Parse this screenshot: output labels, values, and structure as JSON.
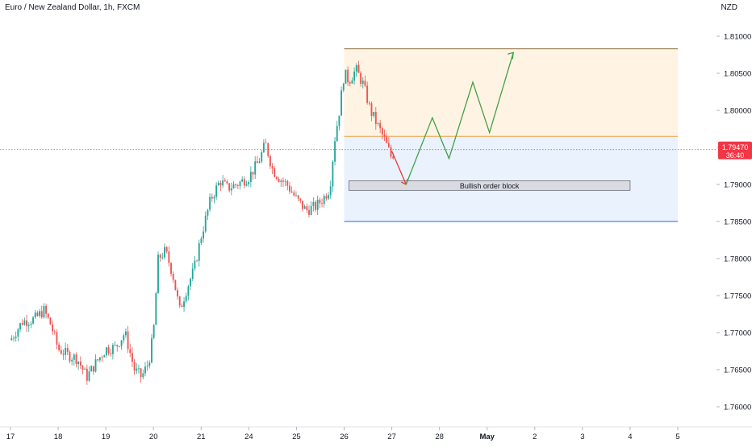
{
  "header": {
    "title": "Euro / New Zealand Dollar, 1h, FXCM",
    "currency": "NZD"
  },
  "price_label": {
    "price": "1.79470",
    "countdown": "36:40"
  },
  "chart_data": {
    "type": "candlestick",
    "ylim": [
      1.7575,
      1.8125
    ],
    "y_ticks": [
      1.76,
      1.765,
      1.77,
      1.775,
      1.78,
      1.785,
      1.79,
      1.795,
      1.8,
      1.805,
      1.81
    ],
    "y_tick_labels": [
      "1.76000",
      "1.76500",
      "1.77000",
      "1.77500",
      "1.78000",
      "1.78500",
      "1.79000",
      "1.79500",
      "1.80000",
      "1.80500",
      "1.81000"
    ],
    "x_ticks": [
      0,
      1,
      2,
      3,
      4,
      5,
      6,
      7,
      8,
      9,
      10,
      11,
      12,
      13,
      14
    ],
    "x_tick_labels": [
      "17",
      "18",
      "19",
      "20",
      "21",
      "24",
      "25",
      "26",
      "27",
      "28",
      "May",
      "2",
      "3",
      "4",
      "5"
    ],
    "current_price": 1.7947,
    "candle_path": [
      [
        0.0,
        1.769
      ],
      [
        0.25,
        1.7715
      ],
      [
        0.5,
        1.7718
      ],
      [
        0.7,
        1.773
      ],
      [
        0.85,
        1.771
      ],
      [
        1.0,
        1.7678
      ],
      [
        1.2,
        1.767
      ],
      [
        1.4,
        1.7665
      ],
      [
        1.6,
        1.764
      ],
      [
        1.8,
        1.766
      ],
      [
        2.0,
        1.7678
      ],
      [
        2.2,
        1.768
      ],
      [
        2.4,
        1.77
      ],
      [
        2.6,
        1.765
      ],
      [
        2.75,
        1.764
      ],
      [
        2.9,
        1.766
      ],
      [
        3.0,
        1.77
      ],
      [
        3.1,
        1.78
      ],
      [
        3.25,
        1.781
      ],
      [
        3.4,
        1.778
      ],
      [
        3.55,
        1.773
      ],
      [
        3.7,
        1.776
      ],
      [
        3.85,
        1.7785
      ],
      [
        4.0,
        1.783
      ],
      [
        4.2,
        1.788
      ],
      [
        4.4,
        1.7905
      ],
      [
        4.55,
        1.7895
      ],
      [
        4.75,
        1.79
      ],
      [
        5.0,
        1.791
      ],
      [
        5.2,
        1.793
      ],
      [
        5.35,
        1.7955
      ],
      [
        5.5,
        1.792
      ],
      [
        5.65,
        1.7908
      ],
      [
        5.8,
        1.79
      ],
      [
        6.0,
        1.788
      ],
      [
        6.2,
        1.7865
      ],
      [
        6.4,
        1.787
      ],
      [
        6.55,
        1.788
      ],
      [
        6.7,
        1.7895
      ],
      [
        6.8,
        1.796
      ],
      [
        6.9,
        1.8
      ],
      [
        7.0,
        1.805
      ],
      [
        7.1,
        1.804
      ],
      [
        7.25,
        1.8055
      ],
      [
        7.4,
        1.8035
      ],
      [
        7.55,
        1.8
      ],
      [
        7.7,
        1.798
      ],
      [
        7.85,
        1.796
      ],
      [
        8.0,
        1.7935
      ],
      [
        8.05,
        1.7946
      ]
    ],
    "zones": {
      "supply_top": 1.8083,
      "supply_bottom": 1.7965,
      "demand_bottom": 1.785,
      "x_start": 7.0,
      "x_end": 14.0
    },
    "order_block": {
      "label": "Bullish order block",
      "top": 1.7905,
      "bottom": 1.7892,
      "x_start": 7.1,
      "x_end": 13.0
    },
    "projection_red": [
      [
        8.0,
        1.7945
      ],
      [
        8.3,
        1.79
      ]
    ],
    "projection_green": [
      [
        8.3,
        1.79
      ],
      [
        8.85,
        1.799
      ],
      [
        9.2,
        1.7935
      ],
      [
        9.7,
        1.8038
      ],
      [
        10.05,
        1.797
      ],
      [
        10.55,
        1.8078
      ]
    ],
    "colors": {
      "up": "#26a69a",
      "down": "#ef5350",
      "supply_fill": "#fff4e3",
      "supply_line": "#f0a040",
      "demand_fill": "#eaf2fd",
      "demand_line": "#2962ff",
      "block_fill": "#d9dbe0",
      "projection_green": "#43a047",
      "projection_red": "#e53935",
      "price_label": "#f23645"
    }
  }
}
